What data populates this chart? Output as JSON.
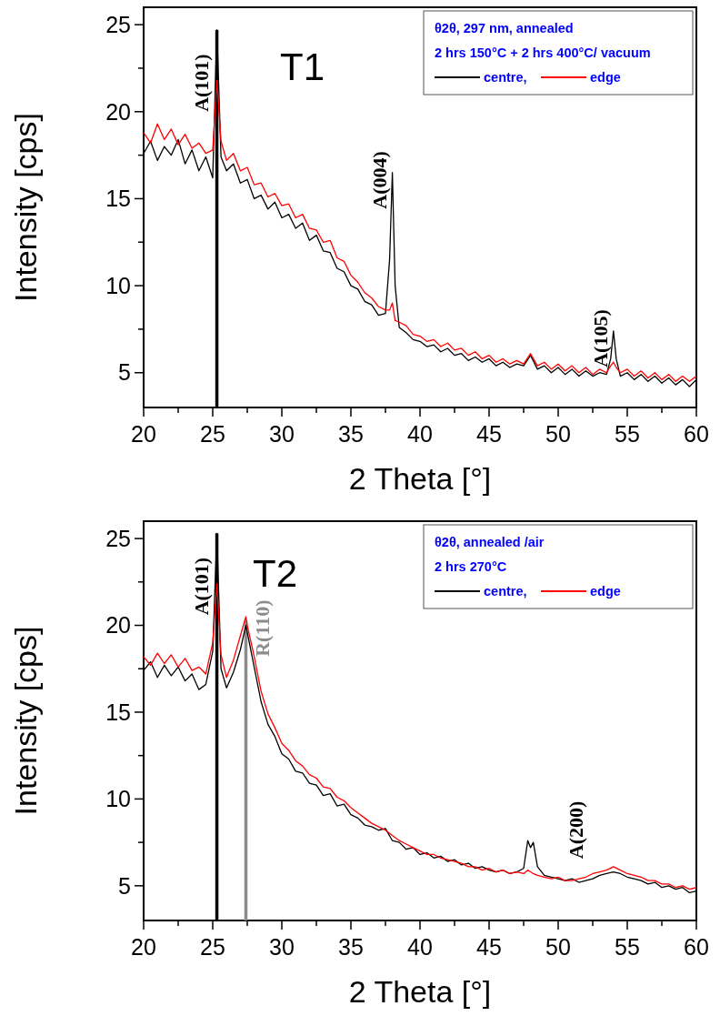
{
  "chart_data": [
    {
      "type": "line",
      "title": "T1",
      "xlabel": "2 Theta [°]",
      "ylabel": "Intensity [cps]",
      "xlim": [
        20,
        60
      ],
      "ylim": [
        3,
        26
      ],
      "xticks": [
        20,
        {
          "value": 22.5,
          "label": null
        },
        25,
        {
          "value": 27.5,
          "label": null
        },
        30,
        {
          "value": 32.5,
          "label": null
        },
        35,
        {
          "value": 37.5,
          "label": null
        },
        40,
        {
          "value": 42.5,
          "label": null
        },
        45,
        {
          "value": 47.5,
          "label": null
        },
        50,
        {
          "value": 52.5,
          "label": null
        },
        55,
        {
          "value": 57.5,
          "label": null
        },
        60
      ],
      "yticks": [
        5,
        {
          "value": 7.5,
          "label": null
        },
        10,
        {
          "value": 12.5,
          "label": null
        },
        15,
        {
          "value": 17.5,
          "label": null
        },
        20,
        {
          "value": 22.5,
          "label": null
        },
        25
      ],
      "legend": "top right",
      "legend_title": "θ2θ, 297 nm, annealed\n2 hrs 150°C + 2 hrs 400°C/ vacuum",
      "series": [
        {
          "name": "centre,",
          "color": "#000000",
          "x": [
            20,
            20.5,
            21,
            21.5,
            22,
            22.5,
            23,
            23.5,
            24,
            24.5,
            25,
            25.3,
            25.6,
            26,
            26.5,
            27,
            27.5,
            28,
            28.5,
            29,
            29.5,
            30,
            30.5,
            31,
            31.5,
            32,
            32.5,
            33,
            33.5,
            34,
            34.5,
            35,
            35.5,
            36,
            36.5,
            37,
            37.5,
            37.8,
            38,
            38.2,
            38.5,
            39,
            39.5,
            40,
            40.5,
            41,
            41.5,
            42,
            42.5,
            43,
            43.5,
            44,
            44.5,
            45,
            45.5,
            46,
            46.5,
            47,
            47.5,
            48,
            48.5,
            49,
            49.5,
            50,
            50.5,
            51,
            51.5,
            52,
            52.5,
            53,
            53.5,
            53.8,
            54,
            54.2,
            54.5,
            55,
            55.5,
            56,
            56.5,
            57,
            57.5,
            58,
            58.5,
            59,
            59.5,
            60
          ],
          "values": [
            17.6,
            18.3,
            17.2,
            18.0,
            17.5,
            18.4,
            17.0,
            17.8,
            16.6,
            17.4,
            16.2,
            24.7,
            17.4,
            16.6,
            17.0,
            15.9,
            16.1,
            15.0,
            15.2,
            14.4,
            14.8,
            13.9,
            14.1,
            13.3,
            13.6,
            12.6,
            12.9,
            12.0,
            11.9,
            11.0,
            10.8,
            10.0,
            9.8,
            9.1,
            8.9,
            8.3,
            8.4,
            11.5,
            16.5,
            10.0,
            7.6,
            7.3,
            6.9,
            6.8,
            6.5,
            6.6,
            6.2,
            6.4,
            6.0,
            6.1,
            5.7,
            5.9,
            5.6,
            5.8,
            5.4,
            5.6,
            5.3,
            5.5,
            5.4,
            6.0,
            5.2,
            5.4,
            5.0,
            5.3,
            4.9,
            5.2,
            4.8,
            5.1,
            4.8,
            5.0,
            4.9,
            5.8,
            7.4,
            5.8,
            4.8,
            5.0,
            4.6,
            4.9,
            4.5,
            4.8,
            4.4,
            4.7,
            4.3,
            4.6,
            4.2,
            4.6
          ]
        },
        {
          "name": "edge",
          "color": "#ff0000",
          "x": [
            20,
            20.5,
            21,
            21.5,
            22,
            22.5,
            23,
            23.5,
            24,
            24.5,
            25,
            25.3,
            25.6,
            26,
            26.5,
            27,
            27.5,
            28,
            28.5,
            29,
            29.5,
            30,
            30.5,
            31,
            31.5,
            32,
            32.5,
            33,
            33.5,
            34,
            34.5,
            35,
            35.5,
            36,
            36.5,
            37,
            37.5,
            37.8,
            38,
            38.2,
            38.5,
            39,
            39.5,
            40,
            40.5,
            41,
            41.5,
            42,
            42.5,
            43,
            43.5,
            44,
            44.5,
            45,
            45.5,
            46,
            46.5,
            47,
            47.5,
            48,
            48.5,
            49,
            49.5,
            50,
            50.5,
            51,
            51.5,
            52,
            52.5,
            53,
            53.5,
            53.8,
            54,
            54.2,
            54.5,
            55,
            55.5,
            56,
            56.5,
            57,
            57.5,
            58,
            58.5,
            59,
            59.5,
            60
          ],
          "values": [
            18.8,
            18.2,
            19.3,
            18.4,
            19.0,
            18.1,
            18.7,
            17.9,
            18.2,
            17.6,
            17.8,
            21.8,
            18.3,
            17.2,
            17.6,
            16.6,
            16.8,
            15.8,
            15.9,
            15.1,
            15.3,
            14.6,
            14.7,
            13.9,
            14.1,
            13.3,
            13.2,
            12.5,
            12.6,
            11.6,
            11.4,
            10.6,
            10.2,
            9.6,
            9.3,
            8.8,
            8.6,
            8.6,
            9.0,
            8.0,
            7.9,
            7.7,
            7.2,
            7.1,
            6.8,
            6.9,
            6.5,
            6.7,
            6.3,
            6.4,
            6.0,
            6.2,
            5.8,
            6.0,
            5.6,
            5.8,
            5.5,
            5.7,
            5.5,
            6.1,
            5.4,
            5.6,
            5.2,
            5.5,
            5.1,
            5.4,
            5.0,
            5.3,
            4.9,
            5.2,
            5.0,
            5.4,
            5.6,
            5.3,
            5.0,
            5.2,
            4.8,
            5.1,
            4.7,
            5.0,
            4.6,
            4.9,
            4.5,
            4.8,
            4.5,
            4.8
          ]
        },
        {
          "name": "A(101)",
          "type": "bar",
          "color": "#000000",
          "x": [
            25.3
          ],
          "values": [
            24.7
          ]
        }
      ],
      "annotations": [
        {
          "text": "A(004)",
          "x": 38,
          "y": 16.5
        },
        {
          "text": "A(105)",
          "x": 54,
          "y": 7.4
        }
      ]
    },
    {
      "type": "line",
      "title": "T2",
      "xlabel": "2 Theta [°]",
      "ylabel": "Intensity [cps]",
      "xlim": [
        20,
        60
      ],
      "ylim": [
        3,
        26
      ],
      "xticks": [
        20,
        {
          "value": 22.5,
          "label": null
        },
        25,
        {
          "value": 27.5,
          "label": null
        },
        30,
        {
          "value": 32.5,
          "label": null
        },
        35,
        {
          "value": 37.5,
          "label": null
        },
        40,
        {
          "value": 42.5,
          "label": null
        },
        45,
        {
          "value": 47.5,
          "label": null
        },
        50,
        {
          "value": 52.5,
          "label": null
        },
        55,
        {
          "value": 57.5,
          "label": null
        },
        60
      ],
      "yticks": [
        5,
        {
          "value": 7.5,
          "label": null
        },
        10,
        {
          "value": 12.5,
          "label": null
        },
        15,
        {
          "value": 17.5,
          "label": null
        },
        20,
        {
          "value": 22.5,
          "label": null
        },
        25
      ],
      "legend": "top right",
      "legend_title": "θ2θ, annealed /air\n2 hrs 270°C",
      "series": [
        {
          "name": "centre,",
          "color": "#000000",
          "x": [
            20,
            20.5,
            21,
            21.5,
            22,
            22.5,
            23,
            23.5,
            24,
            24.5,
            25,
            25.3,
            25.6,
            26,
            26.5,
            27,
            27.4,
            27.5,
            28,
            28.5,
            29,
            29.5,
            30,
            30.5,
            31,
            31.5,
            32,
            32.5,
            33,
            33.5,
            34,
            34.5,
            35,
            35.5,
            36,
            36.5,
            37,
            37.5,
            38,
            38.5,
            39,
            39.5,
            40,
            40.5,
            41,
            41.5,
            42,
            42.5,
            43,
            43.5,
            44,
            44.5,
            45,
            45.5,
            46,
            46.5,
            47,
            47.5,
            47.8,
            48,
            48.2,
            48.5,
            49,
            49.5,
            50,
            50.5,
            51,
            51.5,
            52,
            52.5,
            53,
            53.5,
            54,
            54.5,
            55,
            55.5,
            56,
            56.5,
            57,
            57.5,
            58,
            58.5,
            59,
            59.5,
            60
          ],
          "values": [
            17.4,
            17.9,
            17.0,
            17.7,
            17.1,
            17.6,
            16.8,
            17.2,
            16.3,
            16.6,
            18.5,
            25.3,
            17.5,
            16.4,
            17.3,
            18.6,
            20.0,
            19.6,
            17.6,
            15.6,
            14.3,
            13.6,
            12.6,
            12.3,
            11.6,
            11.5,
            10.9,
            10.8,
            10.2,
            10.3,
            9.6,
            9.7,
            9.1,
            8.9,
            8.5,
            8.4,
            8.2,
            8.3,
            7.6,
            7.5,
            7.1,
            7.2,
            6.8,
            6.9,
            6.6,
            6.7,
            6.4,
            6.5,
            6.2,
            6.3,
            6.0,
            6.1,
            5.9,
            5.8,
            5.9,
            5.7,
            5.8,
            6.0,
            7.6,
            7.2,
            7.5,
            6.1,
            5.6,
            5.5,
            5.4,
            5.3,
            5.4,
            5.2,
            5.3,
            5.4,
            5.6,
            5.7,
            5.8,
            5.7,
            5.5,
            5.4,
            5.3,
            5.1,
            5.2,
            4.9,
            5.0,
            4.8,
            4.9,
            4.6,
            4.7
          ]
        },
        {
          "name": "edge",
          "color": "#ff0000",
          "x": [
            20,
            20.5,
            21,
            21.5,
            22,
            22.5,
            23,
            23.5,
            24,
            24.5,
            25,
            25.3,
            25.6,
            26,
            26.5,
            27,
            27.4,
            27.5,
            28,
            28.5,
            29,
            29.5,
            30,
            30.5,
            31,
            31.5,
            32,
            32.5,
            33,
            33.5,
            34,
            34.5,
            35,
            35.5,
            36,
            36.5,
            37,
            37.5,
            38,
            38.5,
            39,
            39.5,
            40,
            40.5,
            41,
            41.5,
            42,
            42.5,
            43,
            43.5,
            44,
            44.5,
            45,
            45.5,
            46,
            46.5,
            47,
            47.5,
            47.8,
            48,
            48.2,
            48.5,
            49,
            49.5,
            50,
            50.5,
            51,
            51.5,
            52,
            52.5,
            53,
            53.5,
            54,
            54.5,
            55,
            55.5,
            56,
            56.5,
            57,
            57.5,
            58,
            58.5,
            59,
            59.5,
            60
          ],
          "values": [
            18.2,
            17.7,
            18.4,
            17.8,
            18.3,
            17.6,
            18.1,
            17.4,
            17.6,
            17.2,
            19.0,
            22.4,
            18.3,
            17.0,
            18.0,
            19.4,
            20.5,
            20.0,
            18.2,
            16.2,
            14.9,
            14.1,
            13.2,
            12.8,
            12.2,
            11.9,
            11.4,
            11.2,
            10.7,
            10.6,
            10.1,
            9.9,
            9.5,
            9.2,
            8.9,
            8.6,
            8.4,
            8.2,
            7.9,
            7.6,
            7.4,
            7.2,
            7.0,
            6.8,
            6.8,
            6.6,
            6.5,
            6.4,
            6.3,
            6.1,
            6.1,
            5.9,
            6.0,
            5.8,
            5.9,
            5.7,
            5.8,
            5.7,
            5.9,
            5.8,
            5.7,
            5.6,
            5.5,
            5.4,
            5.5,
            5.3,
            5.3,
            5.4,
            5.5,
            5.7,
            5.8,
            5.9,
            6.1,
            5.9,
            5.7,
            5.6,
            5.5,
            5.3,
            5.3,
            5.1,
            5.1,
            4.9,
            5.0,
            4.8,
            4.9
          ]
        },
        {
          "name": "A(101)",
          "type": "bar",
          "color": "#000000",
          "x": [
            25.3
          ],
          "values": [
            25.3
          ]
        },
        {
          "name": "R(110)",
          "type": "bar",
          "color": "#8c8c8c",
          "x": [
            27.4
          ],
          "values": [
            20.3
          ]
        }
      ],
      "annotations": [
        {
          "text": "A(200)",
          "x": 47.8,
          "y": 7.6
        }
      ]
    }
  ]
}
